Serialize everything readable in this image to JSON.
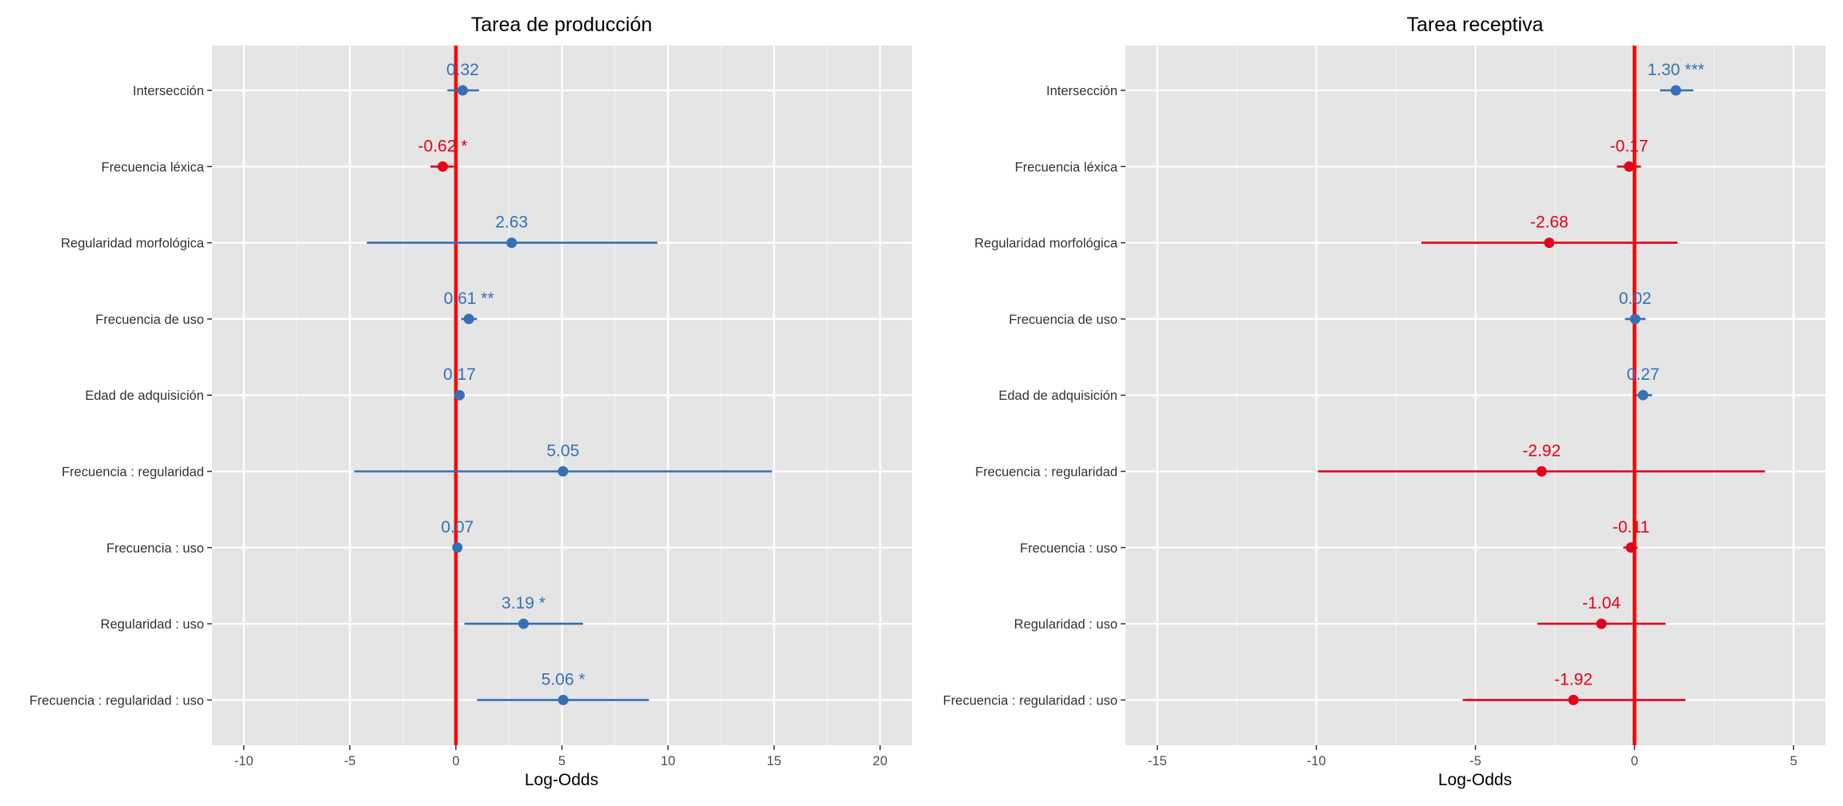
{
  "colors": {
    "positive": "#3670b4",
    "negative": "#e3001b",
    "zero_line": "#ff0000",
    "panel_bg": "#e5e5e5",
    "grid_major": "#ffffff",
    "grid_minor": "#f2f2f2"
  },
  "chart_data": [
    {
      "type": "scatter",
      "subtype": "forest-plot",
      "title": "Tarea de producción",
      "xlabel": "Log-Odds",
      "ylabel": "",
      "xlim": [
        -11.5,
        21.5
      ],
      "xticks": [
        -10,
        -5,
        0,
        5,
        10,
        15,
        20
      ],
      "xtick_labels": [
        "-10",
        "-5",
        "0",
        "5",
        "10",
        "15",
        "20"
      ],
      "reference_line": 0,
      "grid": true,
      "legend": "none",
      "categories": [
        "Intersección",
        "Frecuencia léxica",
        "Regularidad morfológica",
        "Frecuencia de uso",
        "Edad de adquisición",
        "Frecuencia : regularidad",
        "Frecuencia : uso",
        "Regularidad : uso",
        "Frecuencia : regularidad : uso"
      ],
      "estimates": [
        0.32,
        -0.62,
        2.63,
        0.61,
        0.17,
        5.05,
        0.07,
        3.19,
        5.06
      ],
      "ci_low": [
        -0.4,
        -1.2,
        -4.2,
        0.25,
        0.05,
        -4.8,
        -0.02,
        0.4,
        1.0
      ],
      "ci_high": [
        1.1,
        -0.1,
        9.5,
        1.0,
        0.3,
        14.9,
        0.15,
        6.0,
        9.1
      ],
      "labels": [
        "0.32",
        "-0.62 *",
        "2.63",
        "0.61 **",
        "0.17",
        "5.05",
        "0.07",
        "3.19 *",
        "5.06 *"
      ]
    },
    {
      "type": "scatter",
      "subtype": "forest-plot",
      "title": "Tarea receptiva",
      "xlabel": "Log-Odds",
      "ylabel": "",
      "xlim": [
        -16,
        6
      ],
      "xticks": [
        -15,
        -10,
        -5,
        0,
        5
      ],
      "xtick_labels": [
        "-15",
        "-10",
        "-5",
        "0",
        "5"
      ],
      "reference_line": 0,
      "grid": true,
      "legend": "none",
      "categories": [
        "Intersección",
        "Frecuencia léxica",
        "Regularidad morfológica",
        "Frecuencia de uso",
        "Edad de adquisición",
        "Frecuencia : regularidad",
        "Frecuencia : uso",
        "Regularidad : uso",
        "Frecuencia : regularidad : uso"
      ],
      "estimates": [
        1.3,
        -0.17,
        -2.68,
        0.02,
        0.27,
        -2.92,
        -0.11,
        -1.04,
        -1.92
      ],
      "ci_low": [
        0.8,
        -0.55,
        -6.7,
        -0.3,
        0.05,
        -9.95,
        -0.35,
        -3.05,
        -5.4
      ],
      "ci_high": [
        1.85,
        0.2,
        1.35,
        0.35,
        0.55,
        4.1,
        0.1,
        0.98,
        1.6
      ],
      "labels": [
        "1.30 ***",
        "-0.17",
        "-2.68",
        "0.02",
        "0.27",
        "-2.92",
        "-0.11",
        "-1.04",
        "-1.92"
      ]
    }
  ]
}
